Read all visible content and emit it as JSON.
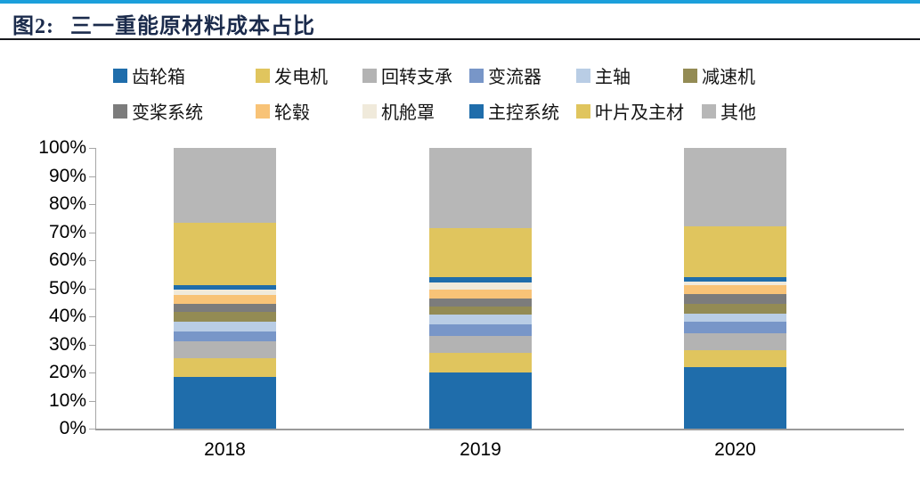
{
  "figure": {
    "title_prefix": "图2:",
    "title": "三一重能原材料成本占比"
  },
  "accent_colors": {
    "top_rule": "#1b9fdb",
    "title_text": "#1b2b4c",
    "axis": "#a6a6a6"
  },
  "chart_data": {
    "type": "bar",
    "stacked": true,
    "unit": "%",
    "title": "三一重能原材料成本占比",
    "categories": [
      "2018",
      "2019",
      "2020"
    ],
    "series": [
      {
        "name": "齿轮箱",
        "color": "#1f6dab",
        "values": [
          18.5,
          20,
          22
        ]
      },
      {
        "name": "发电机",
        "color": "#e0c55e",
        "values": [
          6.5,
          7,
          6
        ]
      },
      {
        "name": "回转支承",
        "color": "#b3b3b3",
        "values": [
          6,
          6,
          6
        ]
      },
      {
        "name": "变流器",
        "color": "#7896c8",
        "values": [
          3.5,
          4,
          4
        ]
      },
      {
        "name": "主轴",
        "color": "#b9cde5",
        "values": [
          3.5,
          3.5,
          3
        ]
      },
      {
        "name": "减速机",
        "color": "#938b54",
        "values": [
          3.5,
          3,
          3.5
        ]
      },
      {
        "name": "变桨系统",
        "color": "#7c7c7c",
        "values": [
          3,
          3,
          3.5
        ]
      },
      {
        "name": "轮毂",
        "color": "#f8c377",
        "values": [
          3,
          3,
          3
        ]
      },
      {
        "name": "机舱罩",
        "color": "#f0eadb",
        "values": [
          2,
          2.5,
          1.5
        ]
      },
      {
        "name": "主控系统",
        "color": "#1f6dab",
        "values": [
          1.5,
          2,
          1.5
        ]
      },
      {
        "name": "叶片及主材",
        "color": "#e0c55e",
        "values": [
          22.5,
          17.5,
          18
        ]
      },
      {
        "name": "其他",
        "color": "#b7b7b7",
        "values": [
          26.5,
          28.5,
          28
        ]
      }
    ],
    "ylim": [
      0,
      100
    ],
    "yticks": [
      "100%",
      "90%",
      "80%",
      "70%",
      "60%",
      "50%",
      "40%",
      "30%",
      "20%",
      "10%",
      "0%"
    ],
    "grid": false,
    "legend_position": "top"
  }
}
